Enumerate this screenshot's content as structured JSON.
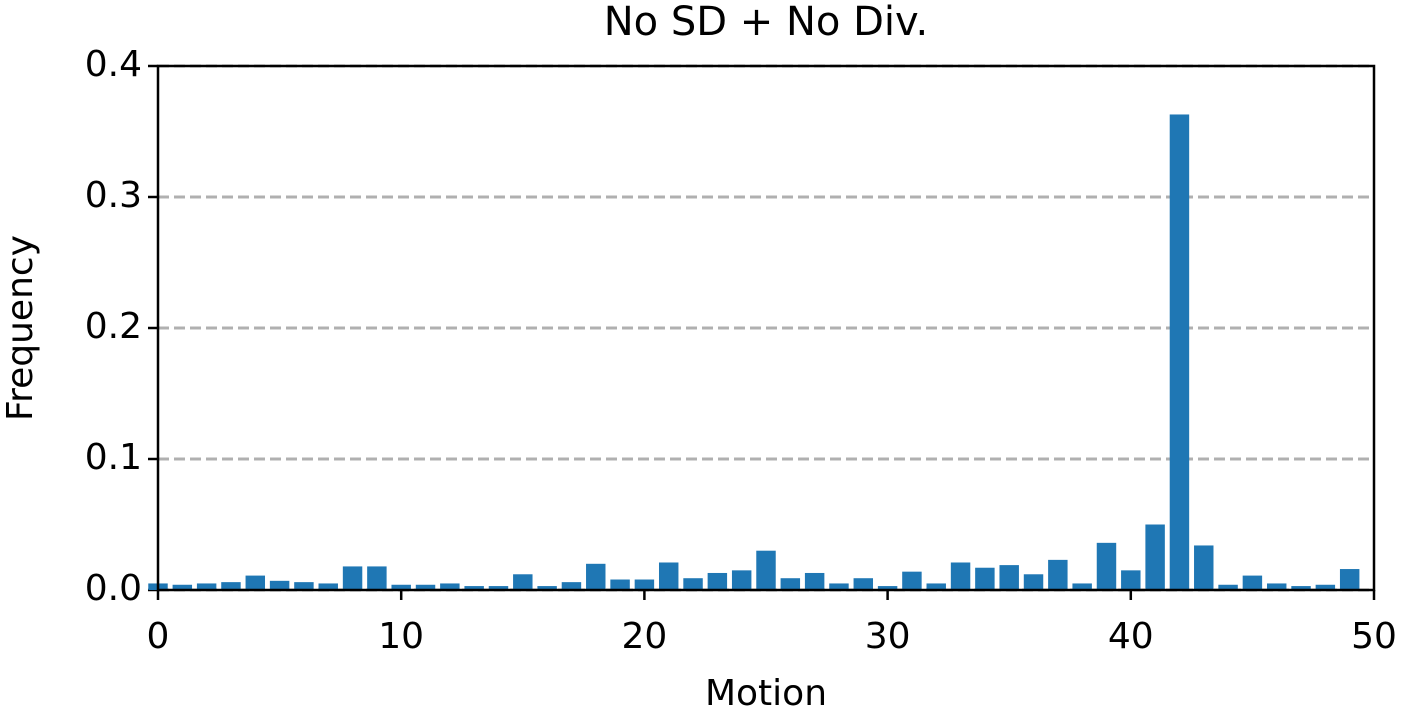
{
  "chart_data": {
    "type": "bar",
    "title": "No SD + No Div.",
    "x_label": "Motion",
    "y_label": "Frequency",
    "x": [
      0,
      1,
      2,
      3,
      4,
      5,
      6,
      7,
      8,
      9,
      10,
      11,
      12,
      13,
      14,
      15,
      16,
      17,
      18,
      19,
      20,
      21,
      22,
      23,
      24,
      25,
      26,
      27,
      28,
      29,
      30,
      31,
      32,
      33,
      34,
      35,
      36,
      37,
      38,
      39,
      40,
      41,
      42,
      43,
      44,
      45,
      46,
      47,
      48,
      49
    ],
    "values": [
      0.005,
      0.004,
      0.005,
      0.006,
      0.011,
      0.007,
      0.006,
      0.005,
      0.018,
      0.018,
      0.004,
      0.004,
      0.005,
      0.003,
      0.003,
      0.012,
      0.003,
      0.006,
      0.02,
      0.008,
      0.008,
      0.021,
      0.009,
      0.013,
      0.015,
      0.03,
      0.009,
      0.013,
      0.005,
      0.009,
      0.003,
      0.014,
      0.005,
      0.021,
      0.017,
      0.019,
      0.012,
      0.023,
      0.005,
      0.036,
      0.015,
      0.05,
      0.363,
      0.034,
      0.004,
      0.011,
      0.005,
      0.003,
      0.004,
      0.016
    ],
    "color": "#1f77b4",
    "xlim": [
      0,
      50
    ],
    "xticks": [
      0,
      10,
      20,
      30,
      40,
      50
    ],
    "ylim": [
      0,
      0.4
    ],
    "yticks": [
      {
        "value": 0,
        "label": "0.0"
      },
      {
        "value": 0.1,
        "label": "0.1"
      },
      {
        "value": 0.2,
        "label": "0.2"
      },
      {
        "value": 0.3,
        "label": "0.3"
      },
      {
        "value": 0.4,
        "label": "0.4"
      }
    ],
    "grid": true
  }
}
